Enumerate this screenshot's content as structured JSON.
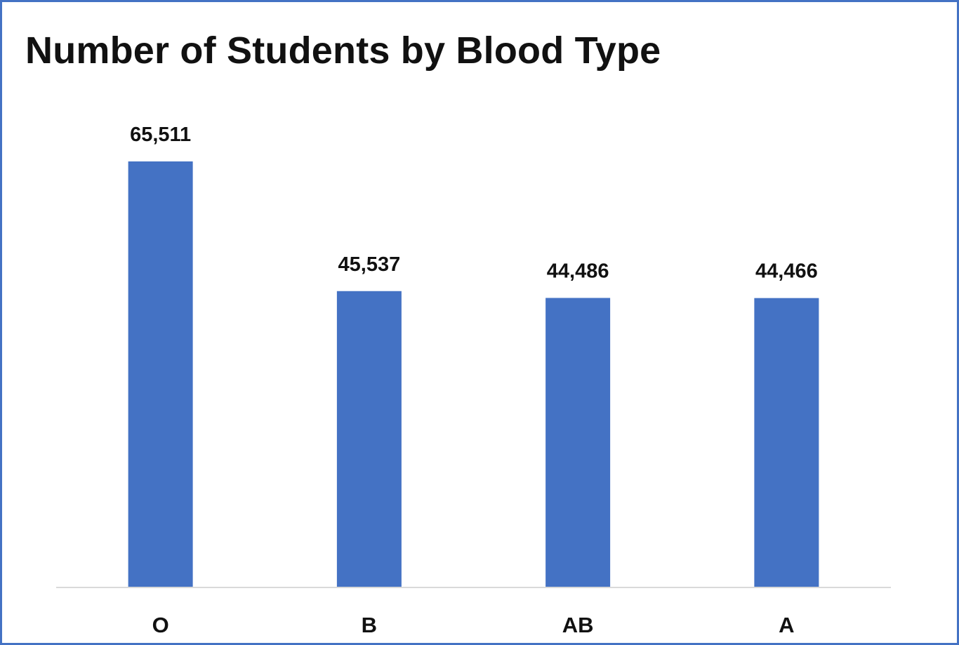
{
  "chart_data": {
    "type": "bar",
    "title": "Number of Students by Blood Type",
    "xlabel": "",
    "ylabel": "",
    "categories": [
      "O",
      "B",
      "AB",
      "A"
    ],
    "values": [
      65511,
      45537,
      44486,
      44466
    ],
    "data_labels": [
      "65,511",
      "45,537",
      "44,486",
      "44,466"
    ],
    "ylim": [
      0,
      65511
    ],
    "grid": false,
    "legend": "none",
    "colors": {
      "bar": "#4472C4",
      "border": "#4472C4",
      "axis": "#D9D9D9",
      "text": "#111111"
    }
  }
}
